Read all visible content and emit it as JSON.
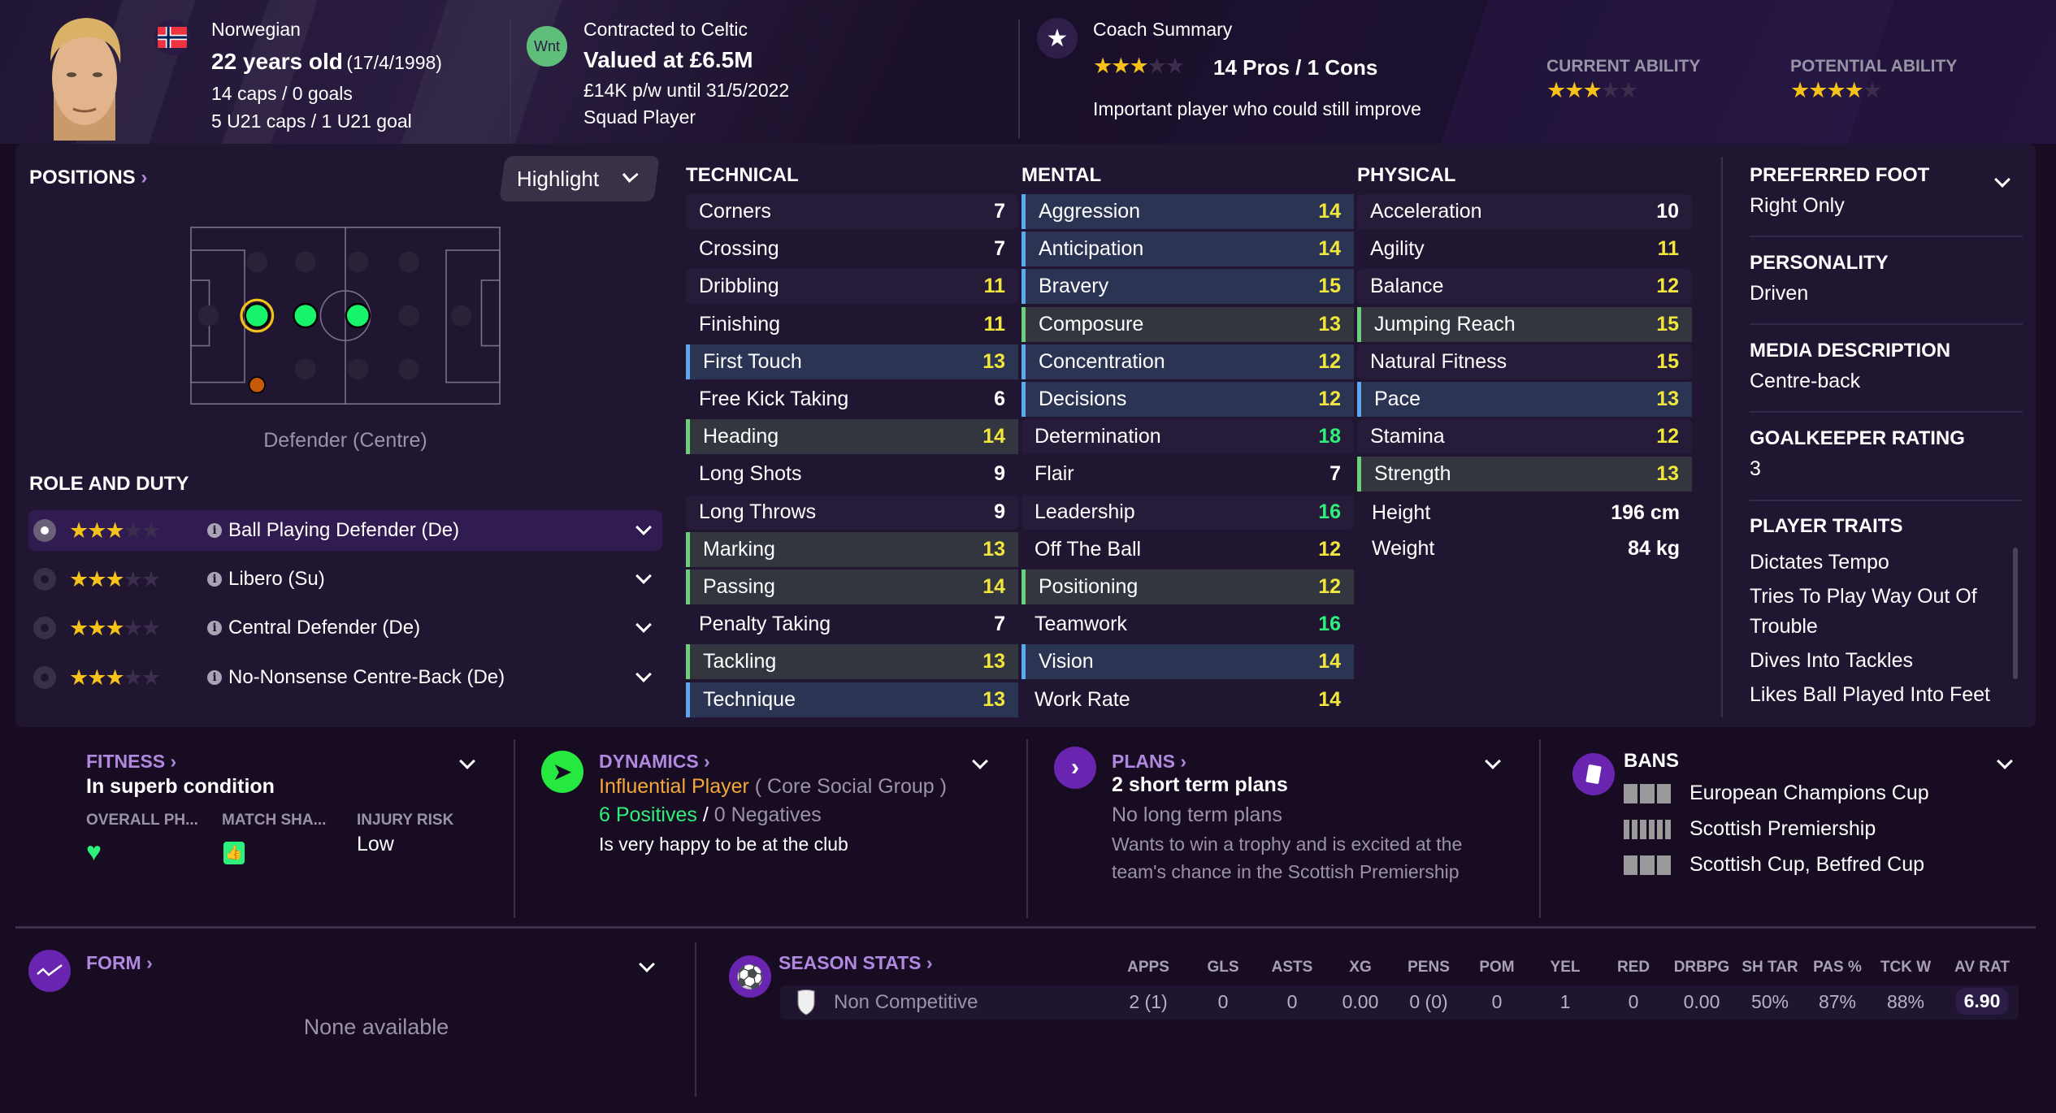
{
  "player": {
    "nationality": "Norwegian",
    "age": "22 years old",
    "dob": "(17/4/1998)",
    "caps": "14 caps / 0 goals",
    "u21": "5 U21 caps / 1 U21 goal"
  },
  "contract": {
    "badge": "Wnt",
    "club": "Contracted to Celtic",
    "value": "Valued at £6.5M",
    "wage": "£14K p/w until 31/5/2022",
    "status": "Squad Player"
  },
  "coach": {
    "title": "Coach Summary",
    "stars": 3,
    "pros_cons": "14 Pros / 1 Cons",
    "summary": "Important player who could still improve",
    "current_ability_label": "CURRENT ABILITY",
    "current_ability_stars": 3,
    "potential_ability_label": "POTENTIAL ABILITY",
    "potential_ability_stars": 4
  },
  "colors": {
    "key": "#5aa9f0",
    "preferable": "#6ccf7a",
    "good": "#f0e63c",
    "excellent": "#2ef07a",
    "accent": "#6a25b0"
  },
  "positions": {
    "title": "POSITIONS",
    "highlight_label": "Highlight",
    "position_name": "Defender (Centre)",
    "role_title": "ROLE AND DUTY",
    "roles": [
      {
        "label": "Ball Playing Defender (De)",
        "stars": 3,
        "selected": true
      },
      {
        "label": "Libero (Su)",
        "stars": 3,
        "selected": false
      },
      {
        "label": "Central Defender (De)",
        "stars": 3,
        "selected": false
      },
      {
        "label": "No-Nonsense Centre-Back (De)",
        "stars": 3,
        "selected": false
      }
    ]
  },
  "attributes": {
    "technical": {
      "title": "TECHNICAL",
      "items": [
        {
          "name": "Corners",
          "value": 7,
          "highlight": ""
        },
        {
          "name": "Crossing",
          "value": 7,
          "highlight": ""
        },
        {
          "name": "Dribbling",
          "value": 11,
          "highlight": ""
        },
        {
          "name": "Finishing",
          "value": 11,
          "highlight": ""
        },
        {
          "name": "First Touch",
          "value": 13,
          "highlight": "key"
        },
        {
          "name": "Free Kick Taking",
          "value": 6,
          "highlight": ""
        },
        {
          "name": "Heading",
          "value": 14,
          "highlight": "pref"
        },
        {
          "name": "Long Shots",
          "value": 9,
          "highlight": ""
        },
        {
          "name": "Long Throws",
          "value": 9,
          "highlight": ""
        },
        {
          "name": "Marking",
          "value": 13,
          "highlight": "pref"
        },
        {
          "name": "Passing",
          "value": 14,
          "highlight": "pref"
        },
        {
          "name": "Penalty Taking",
          "value": 7,
          "highlight": ""
        },
        {
          "name": "Tackling",
          "value": 13,
          "highlight": "pref"
        },
        {
          "name": "Technique",
          "value": 13,
          "highlight": "key"
        }
      ]
    },
    "mental": {
      "title": "MENTAL",
      "items": [
        {
          "name": "Aggression",
          "value": 14,
          "highlight": "key"
        },
        {
          "name": "Anticipation",
          "value": 14,
          "highlight": "key"
        },
        {
          "name": "Bravery",
          "value": 15,
          "highlight": "key"
        },
        {
          "name": "Composure",
          "value": 13,
          "highlight": "pref"
        },
        {
          "name": "Concentration",
          "value": 12,
          "highlight": "key"
        },
        {
          "name": "Decisions",
          "value": 12,
          "highlight": "key"
        },
        {
          "name": "Determination",
          "value": 18,
          "highlight": ""
        },
        {
          "name": "Flair",
          "value": 7,
          "highlight": ""
        },
        {
          "name": "Leadership",
          "value": 16,
          "highlight": ""
        },
        {
          "name": "Off The Ball",
          "value": 12,
          "highlight": ""
        },
        {
          "name": "Positioning",
          "value": 12,
          "highlight": "pref"
        },
        {
          "name": "Teamwork",
          "value": 16,
          "highlight": ""
        },
        {
          "name": "Vision",
          "value": 14,
          "highlight": "key"
        },
        {
          "name": "Work Rate",
          "value": 14,
          "highlight": ""
        }
      ]
    },
    "physical": {
      "title": "PHYSICAL",
      "items": [
        {
          "name": "Acceleration",
          "value": 10,
          "highlight": ""
        },
        {
          "name": "Agility",
          "value": 11,
          "highlight": ""
        },
        {
          "name": "Balance",
          "value": 12,
          "highlight": ""
        },
        {
          "name": "Jumping Reach",
          "value": 15,
          "highlight": "pref"
        },
        {
          "name": "Natural Fitness",
          "value": 15,
          "highlight": ""
        },
        {
          "name": "Pace",
          "value": 13,
          "highlight": "key"
        },
        {
          "name": "Stamina",
          "value": 12,
          "highlight": ""
        },
        {
          "name": "Strength",
          "value": 13,
          "highlight": "pref"
        }
      ],
      "height_label": "Height",
      "height": "196 cm",
      "weight_label": "Weight",
      "weight": "84 kg"
    }
  },
  "info": {
    "foot_label": "PREFERRED FOOT",
    "foot": "Right Only",
    "personality_label": "PERSONALITY",
    "personality": "Driven",
    "media_label": "MEDIA DESCRIPTION",
    "media": "Centre-back",
    "gk_label": "GOALKEEPER RATING",
    "gk": "3",
    "traits_label": "PLAYER TRAITS",
    "traits": [
      "Dictates Tempo",
      "Tries To Play Way Out Of Trouble",
      "Dives Into Tackles",
      "Likes Ball Played Into Feet"
    ]
  },
  "fitness": {
    "title": "FITNESS",
    "status": "In superb condition",
    "col1": "OVERALL PH...",
    "col2": "MATCH SHA...",
    "col3": "INJURY RISK",
    "injury": "Low"
  },
  "dynamics": {
    "title": "DYNAMICS",
    "influence": "Influential Player",
    "group": "( Core Social Group )",
    "positives": "6 Positives",
    "sep": "/",
    "negatives": "0 Negatives",
    "happiness": "Is very happy to be at the club"
  },
  "plans": {
    "title": "PLANS",
    "short": "2 short term plans",
    "long": "No long term plans",
    "desc": "Wants to win a trophy and is excited at the team's chance in the Scottish Premiership"
  },
  "bans": {
    "title": "BANS",
    "items": [
      "European Champions Cup",
      "Scottish Premiership",
      "Scottish Cup, Betfred Cup"
    ]
  },
  "form": {
    "title": "FORM",
    "empty": "None available"
  },
  "season": {
    "title": "SEASON STATS",
    "competition": "Non Competitive",
    "headers": [
      "APPS",
      "GLS",
      "ASTS",
      "XG",
      "PENS",
      "POM",
      "YEL",
      "RED",
      "DRBPG",
      "SH TAR",
      "PAS %",
      "TCK W",
      "AV RAT"
    ],
    "values": [
      "2 (1)",
      "0",
      "0",
      "0.00",
      "0 (0)",
      "0",
      "1",
      "0",
      "0.00",
      "50%",
      "87%",
      "88%",
      "6.90"
    ]
  }
}
